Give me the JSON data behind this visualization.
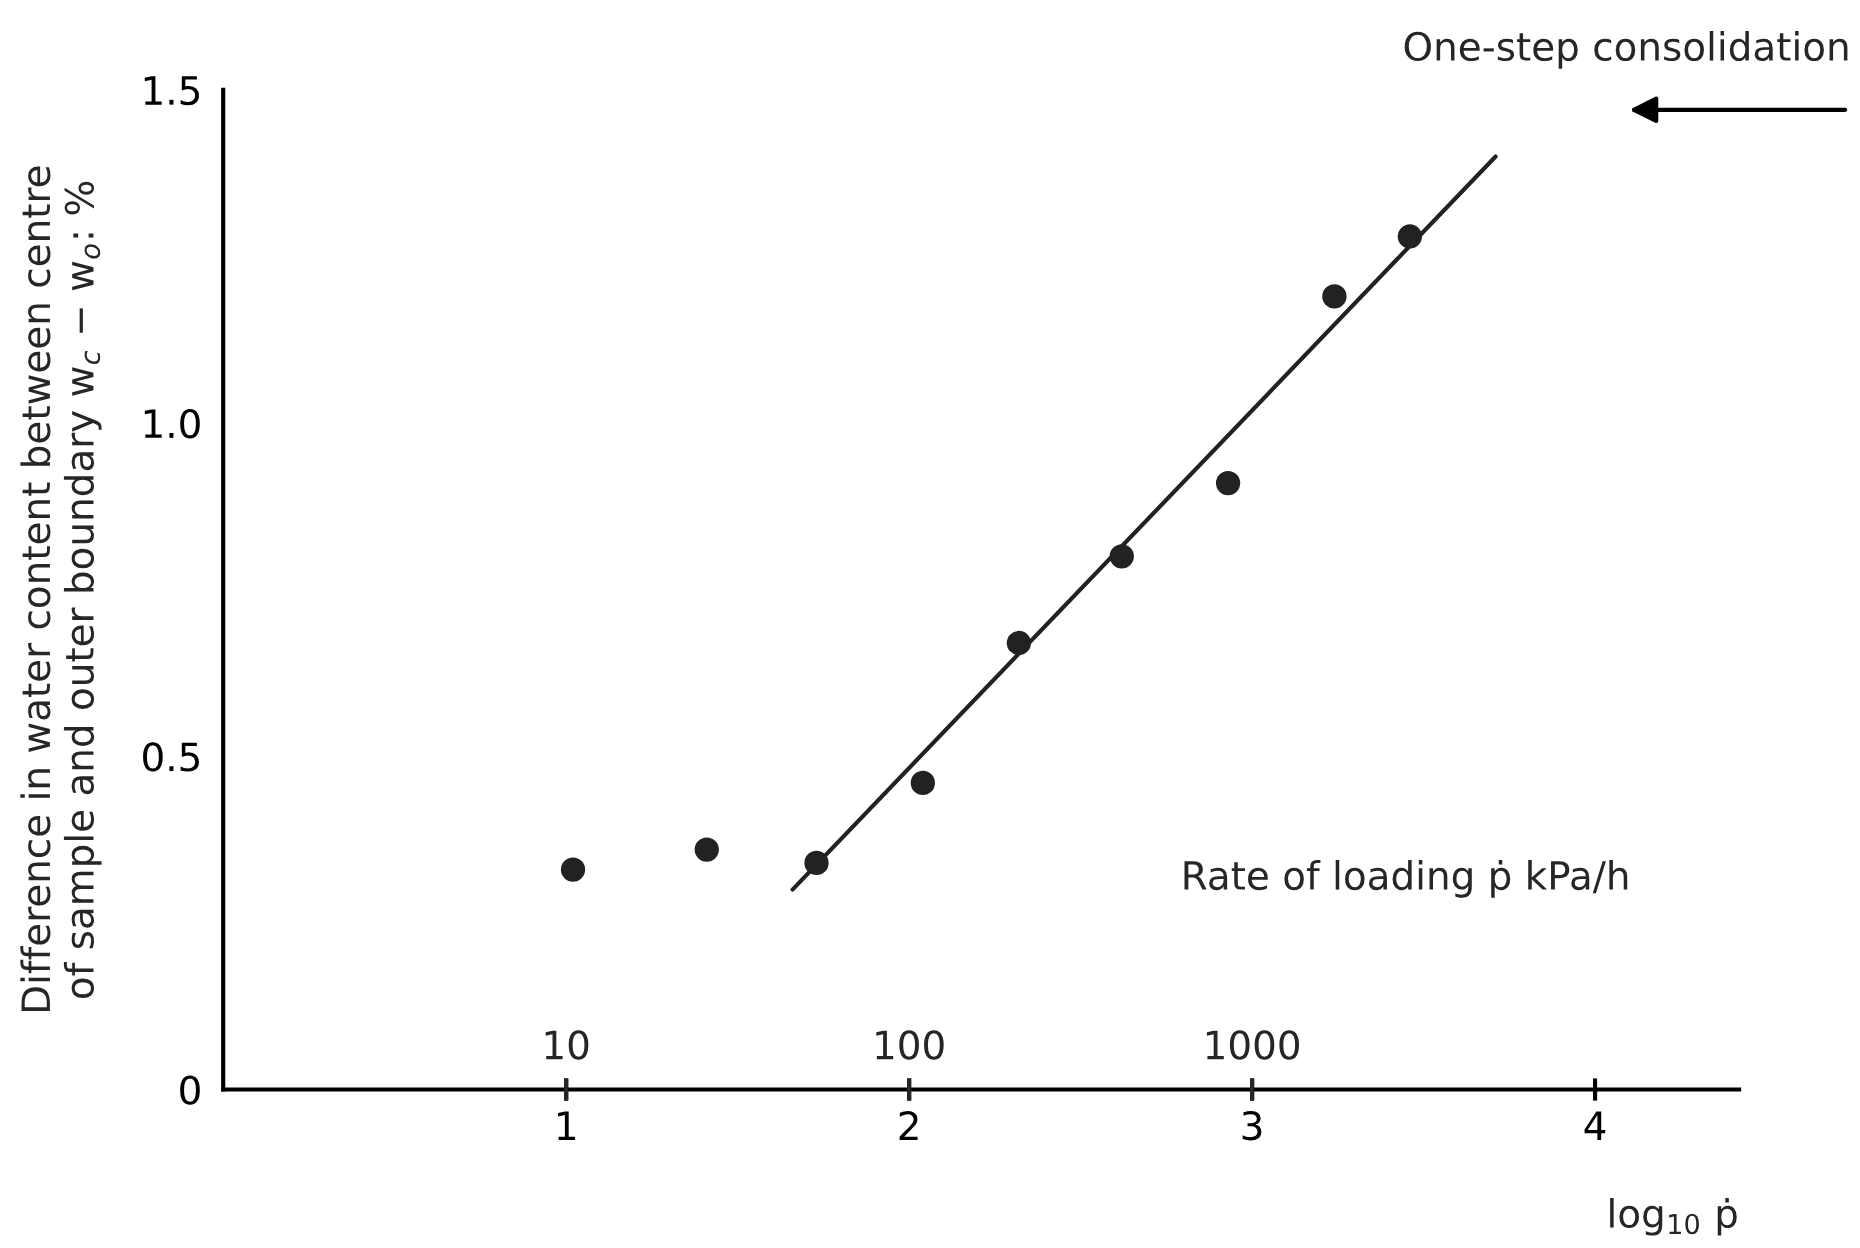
{
  "chart_data": {
    "type": "scatter",
    "xlabel": "log$_{10}$ ṗ",
    "ylabel": "Difference in water content between centre\nof sample and outer boundary w$_{c}$ − w$_{o}$: %",
    "x2label": "Rate of loading ṗ kPa/h",
    "xlim": [
      0,
      4.42
    ],
    "xticks": [
      1,
      2,
      3,
      4
    ],
    "x2lim": [
      1,
      26300
    ],
    "x2ticks": [
      10,
      100,
      1000
    ],
    "log": "x2",
    "ylim": [
      0,
      1.5
    ],
    "yticks": [
      0,
      {
        "value": 0.5,
        "label": "0.5"
      },
      {
        "value": 1.0,
        "label": "1.0"
      },
      {
        "value": 1.5,
        "label": "1.5"
      }
    ],
    "grid": false,
    "series": [
      {
        "color": "#222222",
        "marker": "circle",
        "x": [
          1.02,
          1.41,
          1.73,
          2.04,
          2.32,
          2.62,
          2.93,
          3.24,
          3.46
        ],
        "values": [
          0.33,
          0.36,
          0.34,
          0.46,
          0.67,
          0.8,
          0.91,
          1.19,
          1.28
        ]
      },
      {
        "type": "line",
        "color": "#222222",
        "line_style": "solid",
        "marker": "none",
        "x": [
          1.66,
          3.71
        ],
        "values": [
          0.3,
          1.4
        ]
      }
    ],
    "annotations": [
      "One-step consolidation"
    ]
  }
}
